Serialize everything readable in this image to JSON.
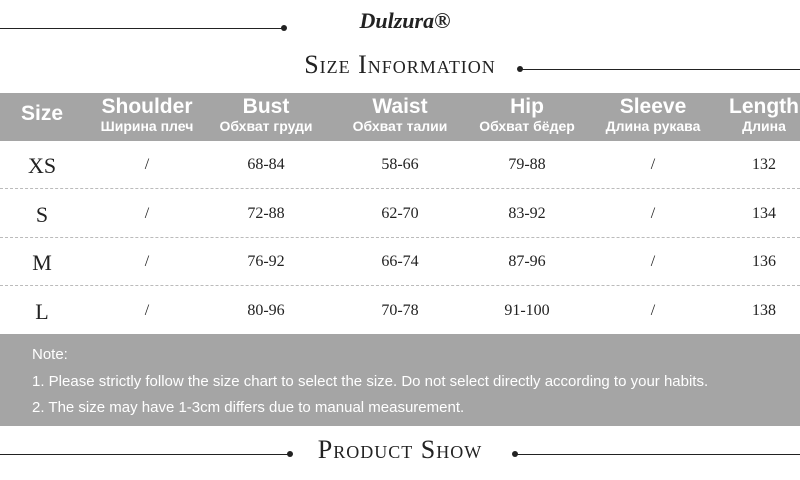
{
  "brand": "Dulzura®",
  "title": "Size Information",
  "table": {
    "headers": [
      {
        "en": "Size"
      },
      {
        "en": "Shoulder",
        "ru": "Ширина плеч"
      },
      {
        "en": "Bust",
        "ru": "Обхват груди"
      },
      {
        "en": "Waist",
        "ru": "Обхват талии"
      },
      {
        "en": "Hip",
        "ru": "Обхват бёдер"
      },
      {
        "en": "Sleeve",
        "ru": "Длина рукава"
      },
      {
        "en": "Length",
        "ru": "Длина"
      }
    ],
    "rows": [
      [
        "XS",
        "/",
        "68-84",
        "58-66",
        "79-88",
        "/",
        "132"
      ],
      [
        "S",
        "/",
        "72-88",
        "62-70",
        "83-92",
        "/",
        "134"
      ],
      [
        "M",
        "/",
        "76-92",
        "66-74",
        "87-96",
        "/",
        "136"
      ],
      [
        "L",
        "/",
        "80-96",
        "70-78",
        "91-100",
        "/",
        "138"
      ]
    ]
  },
  "notes": {
    "heading": "Note:",
    "lines": [
      "1. Please strictly follow the size chart to select the size. Do not select directly according to your habits.",
      "2. The size may have 1-3cm differs due to manual measurement."
    ]
  },
  "footer": "Product Show"
}
